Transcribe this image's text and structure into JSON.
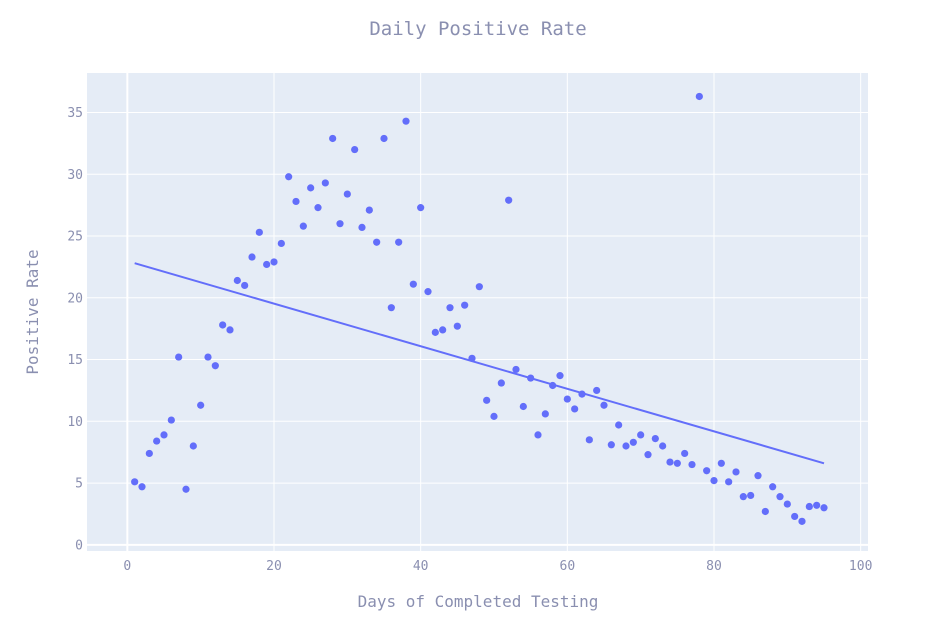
{
  "chart_data": {
    "type": "scatter",
    "title": "Daily Positive Rate",
    "xlabel": "Days of Completed Testing",
    "ylabel": "Positive Rate",
    "xlim": [
      -5.5,
      101
    ],
    "ylim": [
      -0.5,
      38.2
    ],
    "x_ticks": [
      0,
      20,
      40,
      60,
      80,
      100
    ],
    "y_ticks": [
      0,
      5,
      10,
      15,
      20,
      25,
      30,
      35
    ],
    "grid": true,
    "colors": {
      "plot_background": "#e5ecf6",
      "grid": "#ffffff",
      "marker": "#636efa",
      "trendline": "#636efa",
      "text": "#8a8fb0"
    },
    "series": [
      {
        "mode": "markers",
        "x": [
          1,
          2,
          3,
          4,
          5,
          6,
          7,
          8,
          9,
          10,
          11,
          12,
          13,
          14,
          15,
          16,
          17,
          18,
          19,
          20,
          21,
          22,
          23,
          24,
          25,
          26,
          27,
          28,
          29,
          30,
          31,
          32,
          33,
          34,
          35,
          36,
          37,
          38,
          39,
          40,
          41,
          42,
          43,
          44,
          45,
          46,
          47,
          48,
          49,
          50,
          51,
          52,
          53,
          54,
          55,
          56,
          57,
          58,
          59,
          60,
          61,
          62,
          63,
          64,
          65,
          66,
          67,
          68,
          69,
          70,
          71,
          72,
          73,
          74,
          75,
          76,
          77,
          78,
          79,
          80,
          81,
          82,
          83,
          84,
          85,
          86,
          87,
          88,
          89,
          90,
          91,
          92,
          93,
          94,
          95
        ],
        "y": [
          5.1,
          4.7,
          7.4,
          8.4,
          8.9,
          10.1,
          15.2,
          4.5,
          8.0,
          11.3,
          15.2,
          14.5,
          17.8,
          17.4,
          21.4,
          21.0,
          23.3,
          25.3,
          22.7,
          22.9,
          24.4,
          29.8,
          27.8,
          25.8,
          28.9,
          27.3,
          29.3,
          32.9,
          26.0,
          28.4,
          32.0,
          25.7,
          27.1,
          24.5,
          32.9,
          19.2,
          24.5,
          34.3,
          21.1,
          27.3,
          20.5,
          17.2,
          17.4,
          19.2,
          17.7,
          19.4,
          15.1,
          20.9,
          11.7,
          10.4,
          13.1,
          27.9,
          14.2,
          11.2,
          13.5,
          8.9,
          10.6,
          12.9,
          13.7,
          11.8,
          11.0,
          12.2,
          8.5,
          12.5,
          11.3,
          8.1,
          9.7,
          8.0,
          8.3,
          8.9,
          7.3,
          8.6,
          8.0,
          6.7,
          6.6,
          7.4,
          6.5,
          36.3,
          6.0,
          5.2,
          6.6,
          5.1,
          5.9,
          3.9,
          4.0,
          5.6,
          2.7,
          4.7,
          3.9,
          3.3,
          2.3,
          1.9,
          3.1,
          3.2,
          3.0
        ]
      },
      {
        "mode": "lines",
        "x": [
          1,
          95
        ],
        "y": [
          22.8,
          6.6
        ]
      }
    ]
  }
}
